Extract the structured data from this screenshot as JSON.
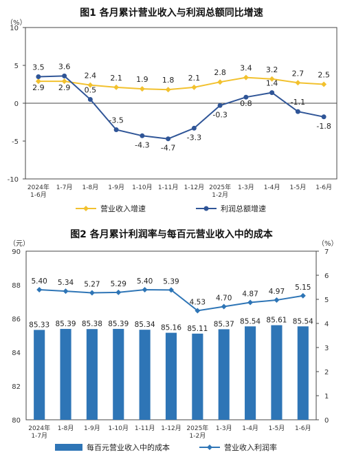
{
  "chart_data": [
    {
      "type": "line",
      "title": "图1  各月累计营业收入与利润总额同比增速",
      "ylabel": "（%）",
      "ylim": [
        -10,
        10
      ],
      "yticks": [
        10,
        5,
        0,
        -5,
        -10
      ],
      "grid": false,
      "legend_position": "bottom",
      "categories": [
        [
          "2024年",
          "1-6月"
        ],
        [
          "1-7月"
        ],
        [
          "1-8月"
        ],
        [
          "1-9月"
        ],
        [
          "1-10月"
        ],
        [
          "1-11月"
        ],
        [
          "1-12月"
        ],
        [
          "2025年",
          "1-2月"
        ],
        [
          "1-3月"
        ],
        [
          "1-4月"
        ],
        [
          "1-5月"
        ],
        [
          "1-6月"
        ]
      ],
      "series": [
        {
          "name": "营业收入增速",
          "color": "#f2c12e",
          "marker": "diamond",
          "values": [
            2.9,
            2.9,
            2.4,
            2.1,
            1.9,
            1.8,
            2.1,
            2.8,
            3.4,
            3.2,
            2.7,
            2.5
          ],
          "labels": [
            "2.9",
            "2.9",
            "2.4",
            "2.1",
            "1.9",
            "1.8",
            "2.1",
            "2.8",
            "3.4",
            "3.2",
            "2.7",
            "2.5"
          ]
        },
        {
          "name": "利润总额增速",
          "color": "#2f5597",
          "marker": "circle",
          "values": [
            3.5,
            3.6,
            0.5,
            -3.5,
            -4.3,
            -4.7,
            -3.3,
            -0.3,
            0.8,
            1.4,
            -1.1,
            -1.8
          ],
          "labels": [
            "3.5",
            "3.6",
            "0.5",
            "-3.5",
            "-4.3",
            "-4.7",
            "-3.3",
            "-0.3",
            "0.8",
            "1.4",
            "-1.1",
            "-1.8"
          ]
        }
      ]
    },
    {
      "type": "bar+line",
      "title": "图2  各月累计利润率与每百元营业收入中的成本",
      "ylabel_left": "（元）",
      "ylabel_right": "（%）",
      "ylim_left": [
        80,
        90
      ],
      "yticks_left": [
        90,
        88,
        86,
        84,
        82,
        80
      ],
      "ylim_right": [
        0,
        7
      ],
      "yticks_right": [
        7,
        6,
        5,
        4,
        3,
        2,
        1,
        0
      ],
      "grid": false,
      "legend_position": "bottom",
      "categories": [
        [
          "2024年",
          "1-7月"
        ],
        [
          "1-8月"
        ],
        [
          "1-9月"
        ],
        [
          "1-10月"
        ],
        [
          "1-11月"
        ],
        [
          "1-12月"
        ],
        [
          "2025年",
          "1-2月"
        ],
        [
          "1-3月"
        ],
        [
          "1-4月"
        ],
        [
          "1-5月"
        ],
        [
          "1-6月"
        ]
      ],
      "bar_series": {
        "name": "每百元营业收入中的成本",
        "color": "#2e75b6",
        "axis": "left",
        "values": [
          85.33,
          85.39,
          85.38,
          85.39,
          85.34,
          85.16,
          85.11,
          85.37,
          85.54,
          85.61,
          85.54
        ],
        "labels": [
          "85.33",
          "85.39",
          "85.38",
          "85.39",
          "85.34",
          "85.16",
          "85.11",
          "85.37",
          "85.54",
          "85.61",
          "85.54"
        ]
      },
      "line_series": {
        "name": "营业收入利润率",
        "color": "#2e75b6",
        "axis": "right",
        "marker": "diamond",
        "values": [
          5.4,
          5.34,
          5.27,
          5.29,
          5.4,
          5.39,
          4.53,
          4.7,
          4.87,
          4.97,
          5.15
        ],
        "labels": [
          "5.40",
          "5.34",
          "5.27",
          "5.29",
          "5.40",
          "5.39",
          "4.53",
          "4.70",
          "4.87",
          "4.97",
          "5.15"
        ]
      }
    }
  ]
}
